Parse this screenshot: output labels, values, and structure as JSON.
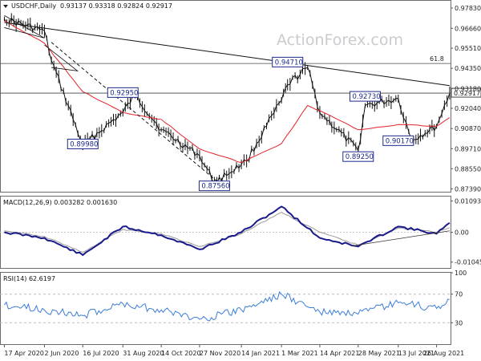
{
  "header": {
    "symbol": "USDCHF,Daily",
    "ohlc": "0.93137 0.93318 0.92824 0.92917",
    "watermark": "ActionForex.com"
  },
  "chart_data": [
    {
      "type": "candlestick",
      "title": "USDCHF,Daily",
      "y_ticks": [
        "0.97830",
        "0.96660",
        "0.95510",
        "0.94350",
        "0.93180",
        "0.92040",
        "0.90870",
        "0.89710",
        "0.88550",
        "0.87390"
      ],
      "ylim": [
        0.8722,
        0.9825
      ],
      "x_ticks": [
        "17 Apr 2020",
        "2 Jun 2020",
        "16 Jul 2020",
        "31 Aug 2020",
        "14 Oct 2020",
        "27 Nov 2020",
        "14 Jan 2021",
        "1 Mar 2021",
        "14 Apr 2021",
        "28 May 2021",
        "13 Jul 2021",
        "26 Aug 2021"
      ],
      "series": [
        {
          "type": "line",
          "color": "#111111",
          "x": [
            "17 Apr 2020",
            "2 Jun 2020",
            "10 Jun 2020",
            "16 Jul 2020",
            "31 Aug 2020",
            "14 Sep 2020",
            "14 Oct 2020",
            "27 Nov 2020",
            "14 Dec 2020",
            "14 Jan 2021",
            "20 Jan 2021",
            "1 Mar 2021",
            "8 Mar 2021",
            "31 Mar 2021",
            "14 Apr 2021",
            "28 May 2021",
            "5 Jun 2021",
            "13 Jul 2021",
            "28 Jul 2021",
            "26 Aug 2021",
            "10 Sep 2021"
          ],
          "y": [
            0.972,
            0.965,
            0.948,
            0.899,
            0.918,
            0.928,
            0.908,
            0.893,
            0.8775,
            0.888,
            0.89,
            0.925,
            0.934,
            0.944,
            0.918,
            0.896,
            0.922,
            0.926,
            0.902,
            0.91,
            0.9292
          ]
        },
        {
          "name": "MA",
          "color": "#e2232a",
          "x": [
            "17 Apr 2020",
            "2 Jun 2020",
            "16 Jul 2020",
            "31 Aug 2020",
            "14 Oct 2020",
            "27 Nov 2020",
            "14 Jan 2021",
            "1 Mar 2021",
            "31 Mar 2021",
            "14 Apr 2021",
            "28 May 2021",
            "13 Jul 2021",
            "26 Aug 2021",
            "10 Sep 2021"
          ],
          "y": [
            0.971,
            0.958,
            0.93,
            0.918,
            0.914,
            0.897,
            0.889,
            0.9,
            0.922,
            0.919,
            0.908,
            0.911,
            0.91,
            0.915
          ]
        }
      ],
      "annotations": [
        {
          "label": "0.94710",
          "x": "8 Mar 2021",
          "y": 0.9471
        },
        {
          "label": "0.92950",
          "x": "31 Aug 2020",
          "y": 0.9295
        },
        {
          "label": "0.92730",
          "x": "5 Jun 2021",
          "y": 0.9273
        },
        {
          "label": "0.89980",
          "x": "16 Jul 2020",
          "y": 0.8998
        },
        {
          "label": "0.90170",
          "x": "13 Jul 2021",
          "y": 0.9017
        },
        {
          "label": "0.89250",
          "x": "28 May 2021",
          "y": 0.8925
        },
        {
          "label": "0.87560",
          "x": "14 Dec 2020",
          "y": 0.8756
        }
      ],
      "levels": [
        {
          "label": "61.8",
          "y": 0.9463,
          "color": "#444444"
        },
        {
          "label": "0.92917",
          "y": 0.92917,
          "color": "#444444"
        }
      ],
      "trendlines": [
        {
          "style": "solid",
          "color": "#111111",
          "from": {
            "x": "17 Apr 2020",
            "y": 0.97
          },
          "to": {
            "x": "10 Sep 2021",
            "y": 0.9335
          }
        },
        {
          "style": "dashed",
          "color": "#111111",
          "from": {
            "x": "10 Jun 2020",
            "y": 0.9585
          },
          "to": {
            "x": "20 Dec 2020",
            "y": 0.877
          }
        }
      ]
    },
    {
      "type": "line",
      "title": "MACD(12,26,9) 0.003282 0.001630",
      "y_ticks": [
        "0.010935",
        "0.00",
        "-0.010459"
      ],
      "ylim": [
        -0.0125,
        0.0125
      ],
      "series": [
        {
          "name": "MACD",
          "color": "#1a1a8c",
          "x": [
            "17 Apr 2020",
            "2 Jun 2020",
            "16 Jul 2020",
            "31 Aug 2020",
            "14 Oct 2020",
            "27 Nov 2020",
            "14 Jan 2021",
            "1 Mar 2021",
            "14 Apr 2021",
            "28 May 2021",
            "13 Jul 2021",
            "26 Aug 2021",
            "10 Sep 2021"
          ],
          "y": [
            0.0,
            -0.002,
            -0.008,
            0.002,
            -0.001,
            -0.006,
            0.0,
            0.009,
            -0.002,
            -0.005,
            0.002,
            -0.0005,
            0.0033
          ]
        },
        {
          "name": "Signal",
          "color": "#9a9a9a",
          "x": [
            "17 Apr 2020",
            "2 Jun 2020",
            "16 Jul 2020",
            "31 Aug 2020",
            "14 Oct 2020",
            "27 Nov 2020",
            "14 Jan 2021",
            "1 Mar 2021",
            "14 Apr 2021",
            "28 May 2021",
            "13 Jul 2021",
            "26 Aug 2021",
            "10 Sep 2021"
          ],
          "y": [
            0.0005,
            -0.0015,
            -0.007,
            0.001,
            -0.0005,
            -0.005,
            -0.0005,
            0.007,
            0.0,
            -0.0045,
            0.0015,
            0.0,
            0.0016
          ]
        }
      ]
    },
    {
      "type": "line",
      "title": "RSI(14) 62.6197",
      "y_ticks": [
        "100",
        "70",
        "30",
        "0"
      ],
      "ylim": [
        0,
        100
      ],
      "series": [
        {
          "name": "RSI",
          "color": "#3b7dd8",
          "x": [
            "17 Apr 2020",
            "2 Jun 2020",
            "16 Jul 2020",
            "31 Aug 2020",
            "14 Oct 2020",
            "27 Nov 2020",
            "14 Jan 2021",
            "1 Mar 2021",
            "14 Apr 2021",
            "28 May 2021",
            "13 Jul 2021",
            "26 Aug 2021",
            "10 Sep 2021"
          ],
          "y": [
            55,
            48,
            40,
            57,
            48,
            35,
            48,
            70,
            45,
            42,
            58,
            50,
            62.6
          ]
        }
      ]
    }
  ]
}
